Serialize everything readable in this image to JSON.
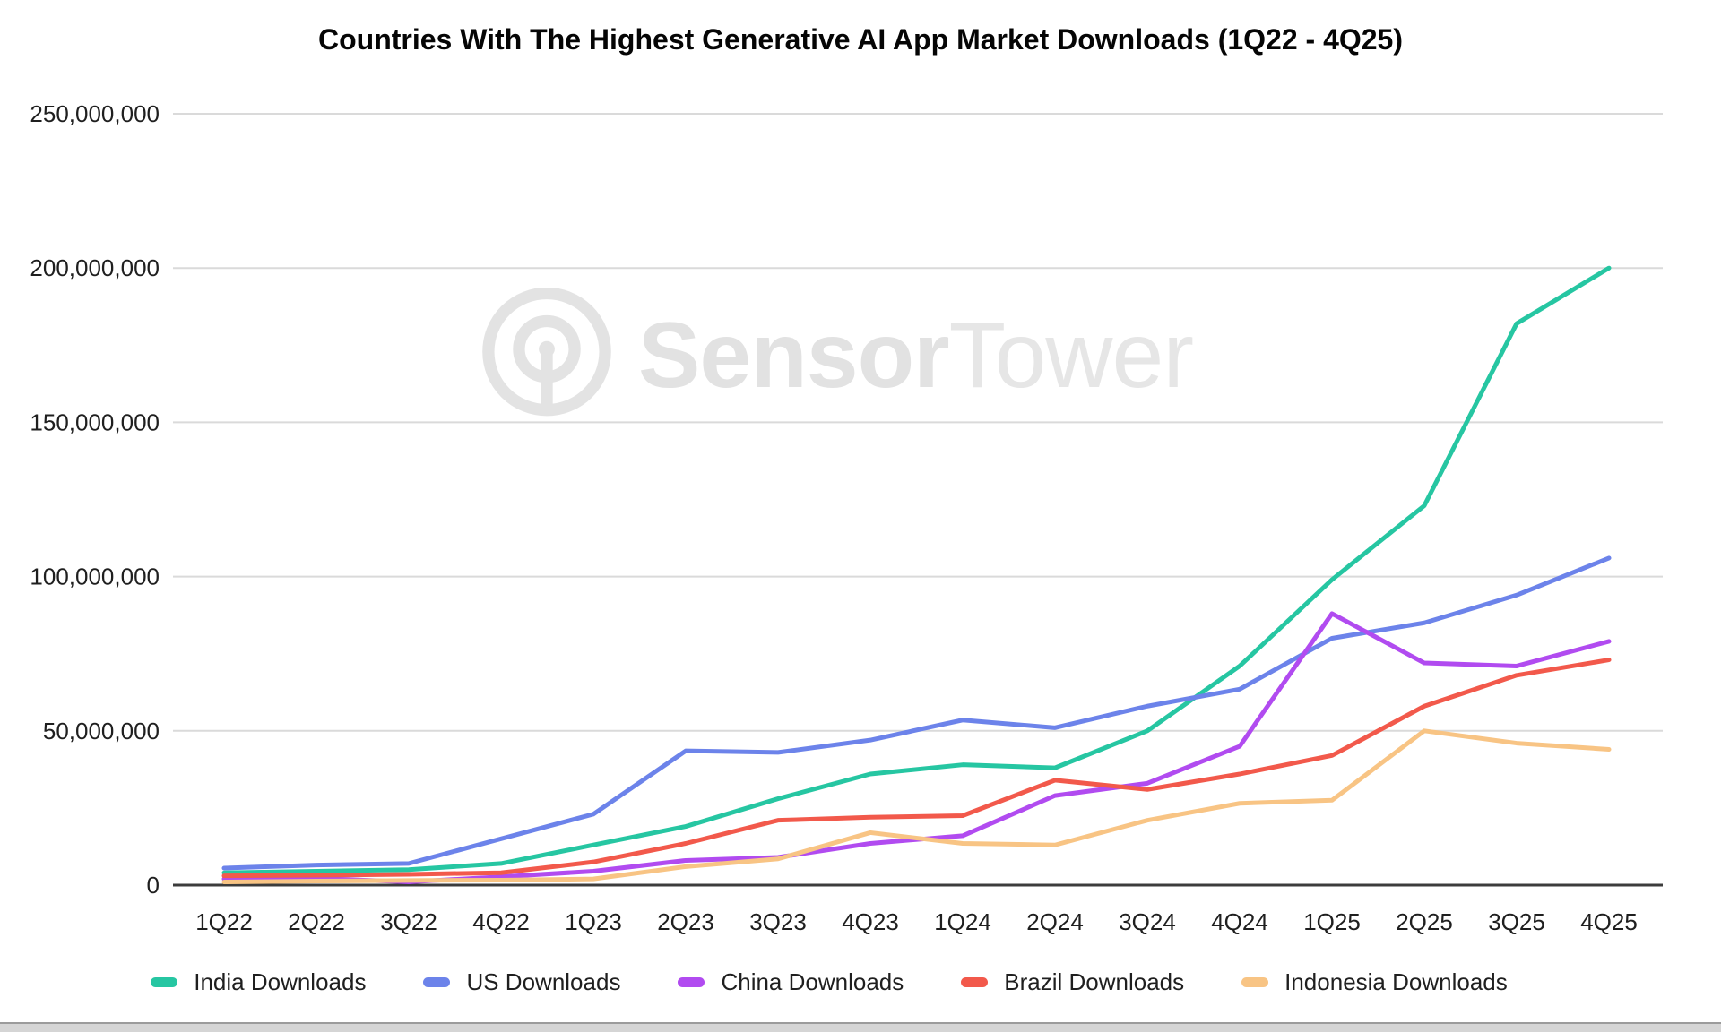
{
  "page": {
    "background": "#ffffff"
  },
  "chart_data": {
    "type": "line",
    "title": "Countries With The Highest Generative AI App Market Downloads (1Q22 - 4Q25)",
    "categories": [
      "1Q22",
      "2Q22",
      "3Q22",
      "4Q22",
      "1Q23",
      "2Q23",
      "3Q23",
      "4Q23",
      "1Q24",
      "2Q24",
      "3Q24",
      "4Q24",
      "1Q25",
      "2Q25",
      "3Q25",
      "4Q25"
    ],
    "series": [
      {
        "name": "India Downloads",
        "color": "#26c6a2",
        "values": [
          4000000,
          4500000,
          5000000,
          7000000,
          13000000,
          19000000,
          28000000,
          36000000,
          39000000,
          38000000,
          50000000,
          71000000,
          99000000,
          123000000,
          182000000,
          200000000
        ]
      },
      {
        "name": "US Downloads",
        "color": "#6c83ea",
        "values": [
          5500000,
          6500000,
          7000000,
          15000000,
          23000000,
          43500000,
          43000000,
          47000000,
          53500000,
          51000000,
          58000000,
          63500000,
          80000000,
          85000000,
          94000000,
          106000000
        ]
      },
      {
        "name": "China Downloads",
        "color": "#b14bf0",
        "values": [
          2000000,
          2200000,
          1000000,
          2700000,
          4500000,
          8000000,
          9000000,
          13500000,
          16000000,
          29000000,
          33000000,
          45000000,
          88000000,
          72000000,
          71000000,
          79000000
        ]
      },
      {
        "name": "Brazil Downloads",
        "color": "#f2594b",
        "values": [
          3000000,
          3200000,
          3500000,
          4000000,
          7500000,
          13500000,
          21000000,
          22000000,
          22500000,
          34000000,
          31000000,
          36000000,
          42000000,
          58000000,
          68000000,
          73000000
        ]
      },
      {
        "name": "Indonesia Downloads",
        "color": "#f8c484",
        "values": [
          1000000,
          1300000,
          1500000,
          1600000,
          2000000,
          6000000,
          8500000,
          17000000,
          13500000,
          13000000,
          21000000,
          26500000,
          27500000,
          50000000,
          46000000,
          44000000
        ]
      }
    ],
    "y_axis": {
      "max_value": 250000000,
      "ticks": [
        {
          "value": 0,
          "label": "0"
        },
        {
          "value": 50000000,
          "label": "50,000,000"
        },
        {
          "value": 100000000,
          "label": "100,000,000"
        },
        {
          "value": 150000000,
          "label": "150,000,000"
        },
        {
          "value": 200000000,
          "label": "200,000,000"
        },
        {
          "value": 250000000,
          "label": "250,000,000"
        }
      ]
    },
    "grid": true,
    "legend_position": "bottom",
    "grid_color": "#dadada",
    "baseline_color": "#3c3c3c",
    "tick_text_color": "#1f1f1f"
  },
  "watermark": {
    "brand_bold": "Sensor",
    "brand_light": "Tower",
    "logo": "sensor-tower-antenna-icon",
    "color": "#e3e3e3"
  }
}
